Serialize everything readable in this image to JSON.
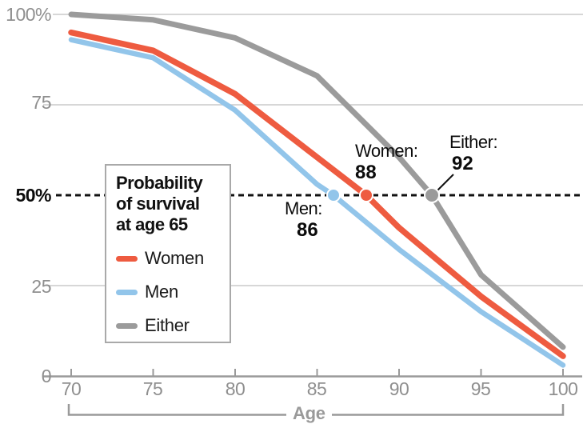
{
  "colors": {
    "women": "#ee5b40",
    "men": "#92c5ea",
    "either": "#9b9b9b",
    "grid": "#cacaca",
    "axis": "#9a9a9a",
    "reference": "#111111"
  },
  "chart_data": {
    "type": "line",
    "title": "Probability of survival at age 65",
    "xlabel": "Age",
    "xlim": [
      70,
      100
    ],
    "ylim": [
      0,
      100
    ],
    "grid": true,
    "x_ticks": [
      {
        "value": 70,
        "label": "70"
      },
      {
        "value": 75,
        "label": "75"
      },
      {
        "value": 80,
        "label": "80"
      },
      {
        "value": 85,
        "label": "85"
      },
      {
        "value": 90,
        "label": "90"
      },
      {
        "value": 95,
        "label": "95"
      },
      {
        "value": 100,
        "label": "100"
      }
    ],
    "y_ticks": [
      {
        "value": 100,
        "label": "100%",
        "gridline": true
      },
      {
        "value": 75,
        "label": "75",
        "gridline": true
      },
      {
        "value": 50,
        "label": "50%",
        "gridline": false
      },
      {
        "value": 25,
        "label": "25",
        "gridline": true
      },
      {
        "value": 0,
        "label": "0",
        "gridline": false
      }
    ],
    "reference_line": {
      "value": 50,
      "style": "dotted"
    },
    "series": [
      {
        "name": "Women",
        "color": "#ee5b40",
        "width": 7.5,
        "points": [
          [
            70,
            95
          ],
          [
            75,
            90
          ],
          [
            80,
            78
          ],
          [
            85,
            60.5
          ],
          [
            88,
            50
          ],
          [
            90,
            41
          ],
          [
            95,
            22
          ],
          [
            100,
            5.5
          ]
        ],
        "marker": {
          "age": 88,
          "value": 50,
          "r": 8
        }
      },
      {
        "name": "Men",
        "color": "#92c5ea",
        "width": 6.5,
        "points": [
          [
            70,
            93
          ],
          [
            75,
            88
          ],
          [
            80,
            73.5
          ],
          [
            85,
            53
          ],
          [
            86,
            50
          ],
          [
            90,
            35
          ],
          [
            95,
            17.8
          ],
          [
            100,
            3
          ]
        ],
        "marker": {
          "age": 86,
          "value": 50,
          "r": 8
        }
      },
      {
        "name": "Either",
        "color": "#9b9b9b",
        "width": 7,
        "points": [
          [
            70,
            100
          ],
          [
            75,
            98.5
          ],
          [
            80,
            93.5
          ],
          [
            85,
            83
          ],
          [
            90,
            60.5
          ],
          [
            92,
            50
          ],
          [
            95,
            28
          ],
          [
            100,
            8
          ]
        ],
        "marker": {
          "age": 92,
          "value": 50,
          "r": 9,
          "leader_line": true
        }
      }
    ]
  },
  "legend": {
    "title_lines": [
      "Probability",
      "of survival",
      "at age 65"
    ],
    "items": [
      {
        "label": "Women",
        "color": "#ee5b40"
      },
      {
        "label": "Men",
        "color": "#92c5ea"
      },
      {
        "label": "Either",
        "color": "#9b9b9b"
      }
    ]
  },
  "annotations": {
    "women": {
      "label": "Women:",
      "value": "88"
    },
    "men": {
      "label": "Men:",
      "value": "86"
    },
    "either": {
      "label": "Either:",
      "value": "92"
    }
  }
}
